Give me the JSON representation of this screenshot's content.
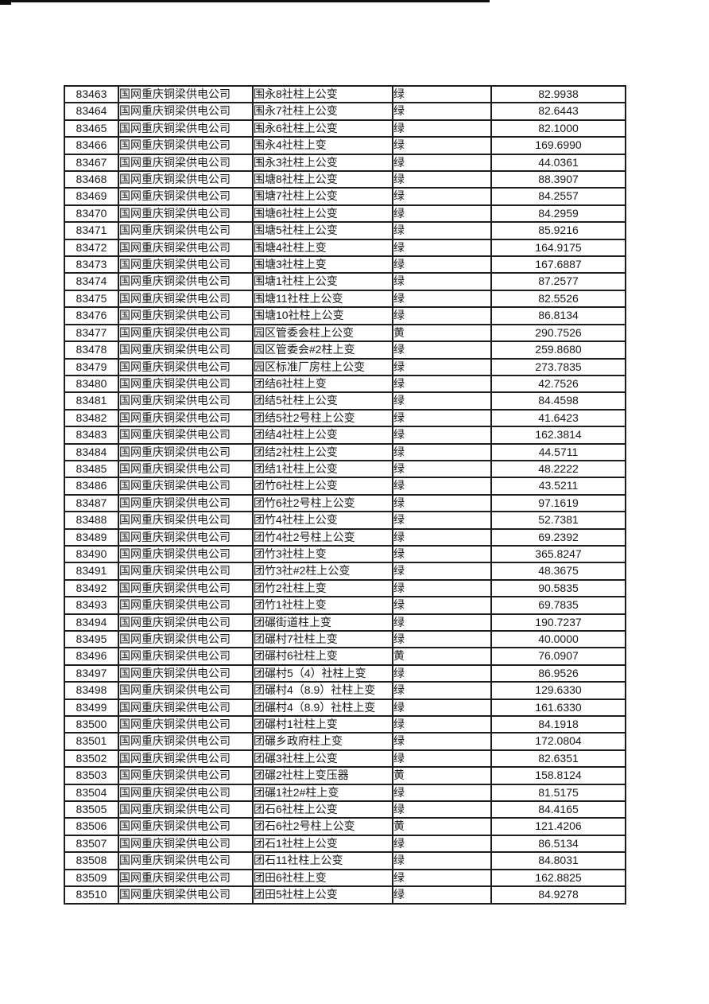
{
  "table": {
    "rows": [
      [
        "83463",
        "国网重庆铜梁供电公司",
        "围永8社柱上公变",
        "绿",
        "82.9938"
      ],
      [
        "83464",
        "国网重庆铜梁供电公司",
        "围永7社柱上公变",
        "绿",
        "82.6443"
      ],
      [
        "83465",
        "国网重庆铜梁供电公司",
        "围永6社柱上公变",
        "绿",
        "82.1000"
      ],
      [
        "83466",
        "国网重庆铜梁供电公司",
        "围永4社柱上变",
        "绿",
        "169.6990"
      ],
      [
        "83467",
        "国网重庆铜梁供电公司",
        "围永3社柱上公变",
        "绿",
        "44.0361"
      ],
      [
        "83468",
        "国网重庆铜梁供电公司",
        "围塘8社柱上公变",
        "绿",
        "88.3907"
      ],
      [
        "83469",
        "国网重庆铜梁供电公司",
        "围塘7社柱上公变",
        "绿",
        "84.2557"
      ],
      [
        "83470",
        "国网重庆铜梁供电公司",
        "围塘6社柱上公变",
        "绿",
        "84.2959"
      ],
      [
        "83471",
        "国网重庆铜梁供电公司",
        "围塘5社柱上公变",
        "绿",
        "85.9216"
      ],
      [
        "83472",
        "国网重庆铜梁供电公司",
        "围塘4社柱上变",
        "绿",
        "164.9175"
      ],
      [
        "83473",
        "国网重庆铜梁供电公司",
        "围塘3社柱上变",
        "绿",
        "167.6887"
      ],
      [
        "83474",
        "国网重庆铜梁供电公司",
        "围塘1社柱上公变",
        "绿",
        "87.2577"
      ],
      [
        "83475",
        "国网重庆铜梁供电公司",
        "围塘11社柱上公变",
        "绿",
        "82.5526"
      ],
      [
        "83476",
        "国网重庆铜梁供电公司",
        "围塘10社柱上公变",
        "绿",
        "86.8134"
      ],
      [
        "83477",
        "国网重庆铜梁供电公司",
        "园区管委会柱上公变",
        "黄",
        "290.7526"
      ],
      [
        "83478",
        "国网重庆铜梁供电公司",
        "园区管委会#2柱上变",
        "绿",
        "259.8680"
      ],
      [
        "83479",
        "国网重庆铜梁供电公司",
        "园区标准厂房柱上公变",
        "绿",
        "273.7835"
      ],
      [
        "83480",
        "国网重庆铜梁供电公司",
        "团结6社柱上变",
        "绿",
        "42.7526"
      ],
      [
        "83481",
        "国网重庆铜梁供电公司",
        "团结5社柱上公变",
        "绿",
        "84.4598"
      ],
      [
        "83482",
        "国网重庆铜梁供电公司",
        "团结5社2号柱上公变",
        "绿",
        "41.6423"
      ],
      [
        "83483",
        "国网重庆铜梁供电公司",
        "团结4社柱上公变",
        "绿",
        "162.3814"
      ],
      [
        "83484",
        "国网重庆铜梁供电公司",
        "团结2社柱上公变",
        "绿",
        "44.5711"
      ],
      [
        "83485",
        "国网重庆铜梁供电公司",
        "团结1社柱上公变",
        "绿",
        "48.2222"
      ],
      [
        "83486",
        "国网重庆铜梁供电公司",
        "团竹6社柱上公变",
        "绿",
        "43.5211"
      ],
      [
        "83487",
        "国网重庆铜梁供电公司",
        "团竹6社2号柱上公变",
        "绿",
        "97.1619"
      ],
      [
        "83488",
        "国网重庆铜梁供电公司",
        "团竹4社柱上公变",
        "绿",
        "52.7381"
      ],
      [
        "83489",
        "国网重庆铜梁供电公司",
        "团竹4社2号柱上公变",
        "绿",
        "69.2392"
      ],
      [
        "83490",
        "国网重庆铜梁供电公司",
        "团竹3社柱上变",
        "绿",
        "365.8247"
      ],
      [
        "83491",
        "国网重庆铜梁供电公司",
        "团竹3社#2柱上公变",
        "绿",
        "48.3675"
      ],
      [
        "83492",
        "国网重庆铜梁供电公司",
        "团竹2社柱上变",
        "绿",
        "90.5835"
      ],
      [
        "83493",
        "国网重庆铜梁供电公司",
        "团竹1社柱上变",
        "绿",
        "69.7835"
      ],
      [
        "83494",
        "国网重庆铜梁供电公司",
        "团碾街道柱上变",
        "绿",
        "190.7237"
      ],
      [
        "83495",
        "国网重庆铜梁供电公司",
        "团碾村7社柱上变",
        "绿",
        "40.0000"
      ],
      [
        "83496",
        "国网重庆铜梁供电公司",
        "团碾村6社柱上变",
        "黄",
        "76.0907"
      ],
      [
        "83497",
        "国网重庆铜梁供电公司",
        "团碾村5（4）社柱上变",
        "绿",
        "86.9526"
      ],
      [
        "83498",
        "国网重庆铜梁供电公司",
        "团碾村4（8.9）社柱上变",
        "绿",
        "129.6330"
      ],
      [
        "83499",
        "国网重庆铜梁供电公司",
        "团碾村4（8.9）社柱上变",
        "绿",
        "161.6330"
      ],
      [
        "83500",
        "国网重庆铜梁供电公司",
        "团碾村1社柱上变",
        "绿",
        "84.1918"
      ],
      [
        "83501",
        "国网重庆铜梁供电公司",
        "团碾乡政府柱上变",
        "绿",
        "172.0804"
      ],
      [
        "83502",
        "国网重庆铜梁供电公司",
        "团碾3社柱上公变",
        "绿",
        "82.6351"
      ],
      [
        "83503",
        "国网重庆铜梁供电公司",
        "团碾2社柱上变压器",
        "黄",
        "158.8124"
      ],
      [
        "83504",
        "国网重庆铜梁供电公司",
        "团碾1社2#柱上变",
        "绿",
        "81.5175"
      ],
      [
        "83505",
        "国网重庆铜梁供电公司",
        "团石6社柱上公变",
        "绿",
        "84.4165"
      ],
      [
        "83506",
        "国网重庆铜梁供电公司",
        "团石6社2号柱上公变",
        "黄",
        "121.4206"
      ],
      [
        "83507",
        "国网重庆铜梁供电公司",
        "团石1社柱上公变",
        "绿",
        "86.5134"
      ],
      [
        "83508",
        "国网重庆铜梁供电公司",
        "团石11社柱上公变",
        "绿",
        "84.8031"
      ],
      [
        "83509",
        "国网重庆铜梁供电公司",
        "团田6社柱上变",
        "绿",
        "162.8825"
      ],
      [
        "83510",
        "国网重庆铜梁供电公司",
        "团田5社柱上公变",
        "绿",
        "84.9278"
      ]
    ],
    "status_colors": {
      "green_label": "绿",
      "yellow_label": "黄"
    }
  }
}
